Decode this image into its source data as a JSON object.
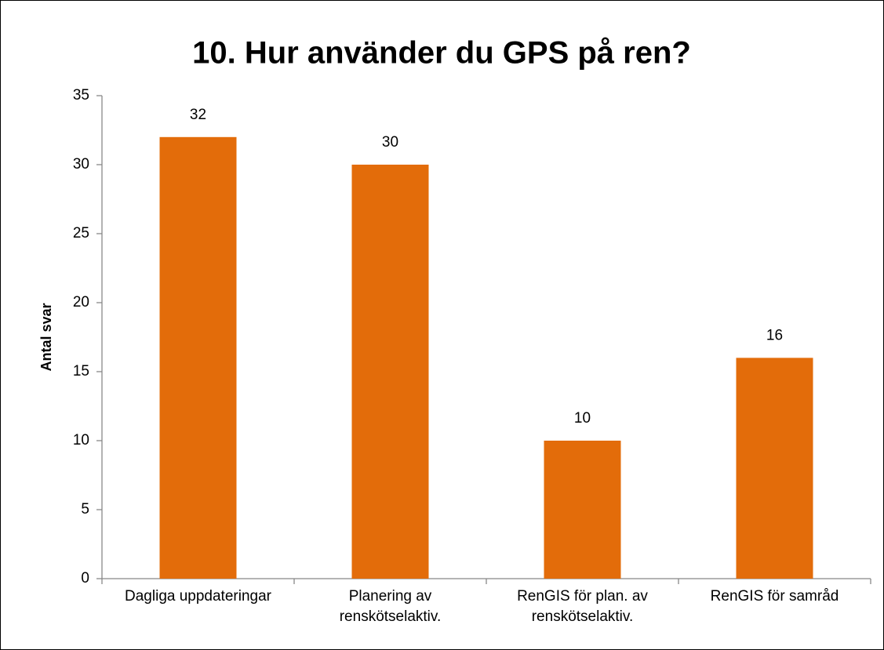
{
  "chart_data": {
    "type": "bar",
    "title": "10. Hur använder du GPS på ren?",
    "y_label": "Antal svar",
    "categories": [
      "Dagliga uppdateringar",
      "Planering av renskötselaktiv.",
      "RenGIS för plan. av renskötselaktiv.",
      "RenGIS för samråd"
    ],
    "values": [
      32,
      30,
      10,
      16
    ],
    "color": "#e36c0a",
    "ylim": [
      0,
      35
    ],
    "yticks": [
      0,
      5,
      10,
      15,
      20,
      25,
      30,
      35
    ],
    "grid": false
  }
}
